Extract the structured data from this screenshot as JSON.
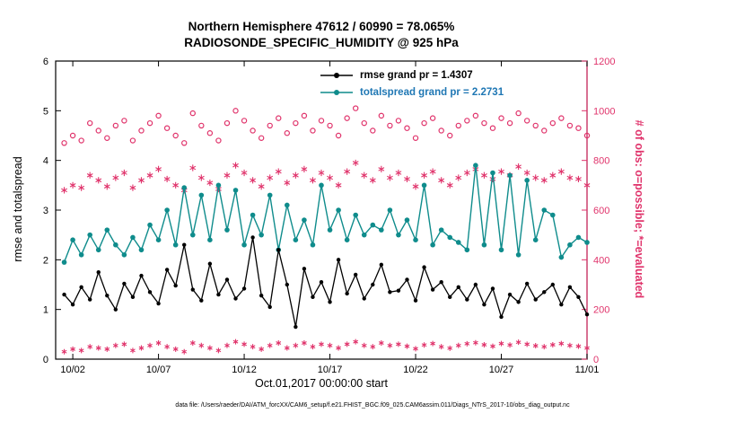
{
  "title": {
    "line1": "Northern Hemisphere 47612 / 60990 = 78.065%",
    "line2": "RADIOSONDE_SPECIFIC_HUMIDITY @ 925 hPa"
  },
  "caption": "data file: /Users/raeder/DAI/ATM_forcXX/CAM6_setup/f.e21.FHIST_BGC.f09_025.CAM6assim.011/Diags_NTrS_2017-10/obs_diag_output.nc",
  "legend": [
    {
      "label": "rmse grand pr = 1.4307",
      "line_color": "#000000",
      "text_color": "#000000"
    },
    {
      "label": "totalspread grand pr = 2.2731",
      "line_color": "#0f8c8c",
      "text_color": "#1f77b4"
    }
  ],
  "colors": {
    "rmse": "#000000",
    "totalspread": "#0f8c8c",
    "obs": "#e0336b",
    "axis": "#000000"
  },
  "chart_data": {
    "type": "line",
    "title": "Northern Hemisphere 47612 / 60990 = 78.065%",
    "subtitle": "RADIOSONDE_SPECIFIC_HUMIDITY @ 925 hPa",
    "xlabel": "Oct.01,2017 00:00:00 start",
    "ylabel_left": "rmse and totalspread",
    "ylabel_right": "# of obs: o=possible; *=evaluated",
    "x_range": [
      1,
      32
    ],
    "ylim_left": [
      0,
      6
    ],
    "ylim_right": [
      0,
      1200
    ],
    "xticks": [
      2,
      7,
      12,
      17,
      22,
      27,
      32
    ],
    "xtick_labels": [
      "10/02",
      "10/07",
      "10/12",
      "10/17",
      "10/22",
      "10/27",
      "11/01"
    ],
    "yticks_left": [
      0,
      1,
      2,
      3,
      4,
      5,
      6
    ],
    "yticks_right": [
      0,
      200,
      400,
      600,
      800,
      1000,
      1200
    ],
    "rmse_grand_pr": 1.4307,
    "totalspread_grand_pr": 2.2731,
    "x_days": [
      1.5,
      2.0,
      2.5,
      3.0,
      3.5,
      4.0,
      4.5,
      5.0,
      5.5,
      6.0,
      6.5,
      7.0,
      7.5,
      8.0,
      8.5,
      9.0,
      9.5,
      10.0,
      10.5,
      11.0,
      11.5,
      12.0,
      12.5,
      13.0,
      13.5,
      14.0,
      14.5,
      15.0,
      15.5,
      16.0,
      16.5,
      17.0,
      17.5,
      18.0,
      18.5,
      19.0,
      19.5,
      20.0,
      20.5,
      21.0,
      21.5,
      22.0,
      22.5,
      23.0,
      23.5,
      24.0,
      24.5,
      25.0,
      25.5,
      26.0,
      26.5,
      27.0,
      27.5,
      28.0,
      28.5,
      29.0,
      29.5,
      30.0,
      30.5,
      31.0,
      31.5,
      32.0
    ],
    "series": [
      {
        "name": "rmse",
        "axis": "left",
        "marker": "filled-circle",
        "values": [
          1.3,
          1.1,
          1.45,
          1.2,
          1.75,
          1.28,
          1.0,
          1.52,
          1.25,
          1.68,
          1.35,
          1.12,
          1.8,
          1.48,
          2.3,
          1.4,
          1.18,
          1.92,
          1.3,
          1.6,
          1.22,
          1.42,
          2.45,
          1.28,
          1.05,
          2.2,
          1.5,
          0.65,
          1.82,
          1.25,
          1.55,
          1.15,
          2.0,
          1.32,
          1.7,
          1.22,
          1.5,
          1.9,
          1.35,
          1.38,
          1.6,
          1.18,
          1.85,
          1.4,
          1.55,
          1.25,
          1.45,
          1.2,
          1.5,
          1.1,
          1.42,
          0.85,
          1.3,
          1.15,
          1.52,
          1.2,
          1.35,
          1.5,
          1.1,
          1.45,
          1.25,
          0.9
        ]
      },
      {
        "name": "totalspread",
        "axis": "left",
        "marker": "filled-circle",
        "values": [
          1.95,
          2.4,
          2.1,
          2.5,
          2.2,
          2.6,
          2.3,
          2.1,
          2.45,
          2.2,
          2.7,
          2.4,
          3.0,
          2.3,
          3.45,
          2.5,
          3.3,
          2.4,
          3.5,
          2.6,
          3.4,
          2.3,
          2.9,
          2.5,
          3.3,
          2.2,
          3.1,
          2.4,
          2.8,
          2.3,
          3.5,
          2.6,
          3.0,
          2.4,
          2.9,
          2.5,
          2.7,
          2.6,
          3.0,
          2.5,
          2.8,
          2.4,
          3.5,
          2.3,
          2.6,
          2.45,
          2.35,
          2.2,
          3.9,
          2.3,
          3.75,
          2.2,
          3.7,
          2.1,
          3.6,
          2.4,
          3.0,
          2.9,
          2.05,
          2.3,
          2.45,
          2.35
        ]
      },
      {
        "name": "obs_possible",
        "axis": "right",
        "marker": "open-circle",
        "values": [
          870,
          900,
          880,
          950,
          920,
          890,
          940,
          960,
          880,
          920,
          950,
          980,
          930,
          900,
          870,
          990,
          940,
          910,
          880,
          950,
          1000,
          960,
          920,
          890,
          940,
          970,
          910,
          950,
          980,
          920,
          960,
          940,
          900,
          970,
          1010,
          950,
          920,
          980,
          940,
          960,
          930,
          890,
          950,
          970,
          920,
          900,
          940,
          960,
          980,
          950,
          930,
          970,
          950,
          990,
          960,
          940,
          920,
          950,
          970,
          940,
          930,
          900
        ]
      },
      {
        "name": "obs_evaluated",
        "axis": "right",
        "marker": "asterisk",
        "values": [
          680,
          700,
          690,
          740,
          720,
          695,
          730,
          750,
          690,
          720,
          740,
          765,
          725,
          700,
          680,
          770,
          730,
          710,
          685,
          740,
          780,
          750,
          720,
          695,
          730,
          755,
          710,
          740,
          765,
          720,
          750,
          730,
          700,
          755,
          790,
          740,
          720,
          765,
          730,
          750,
          725,
          695,
          740,
          755,
          720,
          700,
          730,
          750,
          765,
          740,
          725,
          755,
          740,
          775,
          750,
          730,
          720,
          740,
          755,
          730,
          725,
          700
        ]
      },
      {
        "name": "obs_low_band",
        "axis": "right",
        "marker": "asterisk",
        "values": [
          30,
          40,
          35,
          50,
          45,
          40,
          55,
          60,
          35,
          45,
          55,
          65,
          50,
          40,
          30,
          65,
          55,
          45,
          35,
          55,
          70,
          60,
          50,
          40,
          55,
          65,
          45,
          55,
          65,
          50,
          60,
          55,
          45,
          60,
          70,
          55,
          50,
          65,
          55,
          60,
          52,
          42,
          57,
          63,
          50,
          44,
          55,
          62,
          66,
          58,
          52,
          63,
          57,
          68,
          60,
          54,
          50,
          58,
          63,
          55,
          52,
          45
        ]
      }
    ]
  }
}
